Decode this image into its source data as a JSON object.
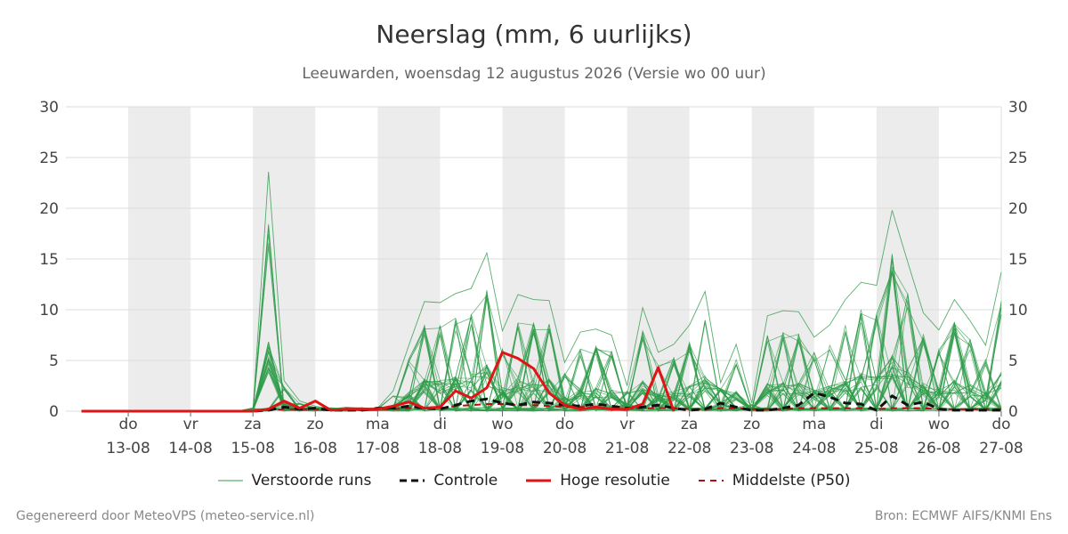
{
  "header": {
    "title": "Neerslag (mm, 6 uurlijks)",
    "subtitle": "Leeuwarden, woensdag 12 augustus 2026 (Versie wo 00 uur)"
  },
  "footer": {
    "left": "Gegenereerd door MeteoVPS (meteo-service.nl)",
    "right": "Bron: ECMWF AIFS/KNMI Ens"
  },
  "colors": {
    "perturbed": "#2e9b48",
    "control": "#111111",
    "high_res": "#e01414",
    "median": "#b01010",
    "weekend_band": "#ececec",
    "grid": "#dddddd"
  },
  "chart_data": {
    "type": "line",
    "x_unit": "6-hourly steps, 0 = 12-08 00 uur",
    "xlim": [
      0,
      60
    ],
    "ylim": [
      0,
      30
    ],
    "y_ticks": [
      0,
      5,
      10,
      15,
      20,
      25,
      30
    ],
    "grid": true,
    "legend_position": "bottom",
    "x_day_labels": [
      {
        "day": "do",
        "date": "13-08",
        "x": 4
      },
      {
        "day": "vr",
        "date": "14-08",
        "x": 8
      },
      {
        "day": "za",
        "date": "15-08",
        "x": 12
      },
      {
        "day": "zo",
        "date": "16-08",
        "x": 16
      },
      {
        "day": "ma",
        "date": "17-08",
        "x": 20
      },
      {
        "day": "di",
        "date": "18-08",
        "x": 24
      },
      {
        "day": "wo",
        "date": "19-08",
        "x": 28
      },
      {
        "day": "do",
        "date": "20-08",
        "x": 32
      },
      {
        "day": "vr",
        "date": "21-08",
        "x": 36
      },
      {
        "day": "za",
        "date": "22-08",
        "x": 40
      },
      {
        "day": "zo",
        "date": "23-08",
        "x": 44
      },
      {
        "day": "ma",
        "date": "24-08",
        "x": 48
      },
      {
        "day": "di",
        "date": "25-08",
        "x": 52
      },
      {
        "day": "wo",
        "date": "26-08",
        "x": 56
      },
      {
        "day": "do",
        "date": "27-08",
        "x": 60
      }
    ],
    "shaded_bands": [
      [
        4,
        8
      ],
      [
        12,
        16
      ],
      [
        20,
        24
      ],
      [
        28,
        32
      ],
      [
        36,
        40
      ],
      [
        44,
        48
      ],
      [
        52,
        56
      ]
    ],
    "legend": [
      {
        "name": "Verstoorde runs",
        "style": "thin-green"
      },
      {
        "name": "Controle",
        "style": "black-dashed"
      },
      {
        "name": "Hoge resolutie",
        "style": "red-thick"
      },
      {
        "name": "Middelste (P50)",
        "style": "darkred-dashed"
      }
    ],
    "series": [
      {
        "name": "Hoge resolutie",
        "x": [
          1,
          2,
          3,
          4,
          5,
          6,
          7,
          8,
          9,
          10,
          11,
          12,
          13,
          14,
          15,
          16,
          17,
          18,
          19,
          20,
          21,
          22,
          23,
          24,
          25,
          26,
          27,
          28,
          29,
          30,
          31,
          32,
          33,
          34,
          35,
          36,
          37,
          38,
          39,
          40,
          41
        ],
        "values": [
          0,
          0,
          0,
          0,
          0,
          0,
          0,
          0,
          0,
          0,
          0,
          0,
          0.2,
          1.0,
          0.3,
          1.0,
          0.1,
          0.2,
          0.2,
          0.2,
          0.5,
          0.9,
          0.3,
          0.4,
          2.0,
          1.3,
          2.3,
          5.8,
          5.2,
          4.2,
          1.8,
          0.6,
          0.2,
          0.4,
          0.2,
          0.2,
          0.7,
          4.3,
          0,
          null,
          null
        ]
      },
      {
        "name": "Controle",
        "x": [
          1,
          2,
          3,
          4,
          5,
          6,
          7,
          8,
          9,
          10,
          11,
          12,
          13,
          14,
          15,
          16,
          17,
          18,
          19,
          20,
          21,
          22,
          23,
          24,
          25,
          26,
          27,
          28,
          29,
          30,
          31,
          32,
          33,
          34,
          35,
          36,
          37,
          38,
          39,
          40,
          41,
          42,
          43,
          44,
          45,
          46,
          47,
          48,
          49,
          50,
          51,
          52,
          53,
          54,
          55,
          56,
          57,
          58,
          59,
          60
        ],
        "values": [
          0,
          0,
          0,
          0,
          0,
          0,
          0,
          0,
          0,
          0,
          0,
          0,
          0.1,
          0.4,
          0.2,
          0.3,
          0.1,
          0.1,
          0.1,
          0.3,
          0.3,
          0.5,
          0.3,
          0.2,
          0.6,
          1.0,
          1.2,
          0.8,
          0.6,
          0.9,
          0.8,
          0.6,
          0.5,
          0.7,
          0.5,
          0.3,
          0.4,
          0.6,
          0.3,
          0.1,
          0.2,
          0.8,
          0.4,
          0.1,
          0.1,
          0.3,
          0.6,
          1.8,
          1.4,
          0.8,
          0.7,
          0.1,
          1.5,
          0.6,
          0.9,
          0.2,
          0.1,
          0.1,
          0.1,
          0.1
        ]
      },
      {
        "name": "Middelste (P50)",
        "x": [
          1,
          2,
          3,
          4,
          5,
          6,
          7,
          8,
          9,
          10,
          11,
          12,
          13,
          14,
          15,
          16,
          17,
          18,
          19,
          20,
          21,
          22,
          23,
          24,
          25,
          26,
          27,
          28,
          29,
          30,
          31,
          32,
          33,
          34,
          35,
          36,
          37,
          38,
          39,
          40,
          41,
          42,
          43,
          44,
          45,
          46,
          47,
          48,
          49,
          50,
          51,
          52,
          53,
          54,
          55,
          56,
          57,
          58,
          59,
          60
        ],
        "values": [
          0,
          0,
          0,
          0,
          0,
          0,
          0,
          0,
          0,
          0,
          0,
          0,
          0.1,
          0.2,
          0.2,
          0.2,
          0.1,
          0.1,
          0.1,
          0.2,
          0.2,
          0.3,
          0.3,
          0.3,
          0.5,
          0.6,
          0.7,
          0.7,
          0.6,
          0.6,
          0.5,
          0.4,
          0.4,
          0.4,
          0.3,
          0.3,
          0.3,
          0.3,
          0.3,
          0.2,
          0.2,
          0.3,
          0.3,
          0.2,
          0.2,
          0.2,
          0.3,
          0.3,
          0.3,
          0.3,
          0.3,
          0.2,
          0.3,
          0.3,
          0.3,
          0.2,
          0.2,
          0.2,
          0.2,
          0.2
        ]
      },
      {
        "name": "Verstoorde runs (hoogste)",
        "x": [
          12,
          13,
          14,
          15,
          16,
          17,
          18,
          19,
          20,
          21,
          22,
          23,
          24,
          25,
          26,
          27,
          28,
          29,
          30,
          31,
          32,
          33,
          34,
          35,
          36,
          37,
          38,
          39,
          40,
          41,
          42,
          43,
          44,
          45,
          46,
          47,
          48,
          49,
          50,
          51,
          52,
          53,
          54,
          55,
          56,
          57,
          58,
          59,
          60
        ],
        "values": [
          0,
          23.6,
          3.0,
          1.0,
          0.5,
          0.2,
          0.4,
          0.3,
          0.3,
          2.0,
          6.5,
          10.8,
          10.7,
          11.6,
          12.1,
          15.6,
          7.9,
          11.5,
          11.0,
          10.9,
          4.8,
          7.8,
          8.1,
          7.5,
          2.5,
          10.2,
          5.8,
          6.6,
          8.5,
          11.8,
          2.8,
          6.6,
          0.8,
          9.4,
          9.9,
          9.8,
          7.3,
          8.5,
          11.0,
          12.7,
          12.4,
          19.8,
          14.7,
          9.7,
          8.0,
          11.0,
          8.9,
          6.5,
          13.7
        ]
      }
    ]
  }
}
